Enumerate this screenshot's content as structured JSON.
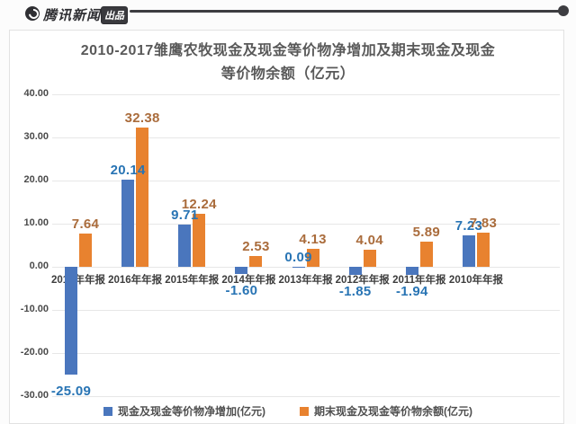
{
  "watermark": {
    "brand": "腾讯新闻",
    "badge": "出品"
  },
  "chart_data": {
    "type": "bar",
    "title": "2010-2017雏鹰农牧现金及现金等价物净增加及期末现金及现金等价物余额（亿元）",
    "title_lines": [
      "2010-2017雏鹰农牧现金及现金等价物净增加及期末现金及现金",
      "等价物余额（亿元）"
    ],
    "categories": [
      "2017年年报",
      "2016年年报",
      "2015年年报",
      "2014年年报",
      "2013年年报",
      "2012年年报",
      "2011年年报",
      "2010年年报"
    ],
    "series": [
      {
        "name": "现金及现金等价物净增加(亿元)",
        "color": "#4a76bd",
        "label_color": "#2874b4",
        "values": [
          -25.09,
          20.14,
          9.71,
          -1.6,
          0.09,
          -1.85,
          -1.94,
          7.23
        ]
      },
      {
        "name": "期末现金及现金等价物余额(亿元)",
        "color": "#e8822f",
        "label_color": "#aa6c3c",
        "values": [
          7.64,
          32.38,
          12.24,
          2.53,
          4.13,
          4.04,
          5.89,
          7.83
        ]
      }
    ],
    "ylim": [
      -30,
      40
    ],
    "yticks": [
      40,
      30,
      20,
      10,
      0,
      -10,
      -20,
      -30
    ],
    "ytick_labels": [
      "40.00",
      "30.00",
      "20.00",
      "10.00",
      "0.00",
      "-10.00",
      "-20.00",
      "-30.00"
    ],
    "value_label_decimals": 2,
    "grid": true,
    "legend_position": "bottom"
  }
}
